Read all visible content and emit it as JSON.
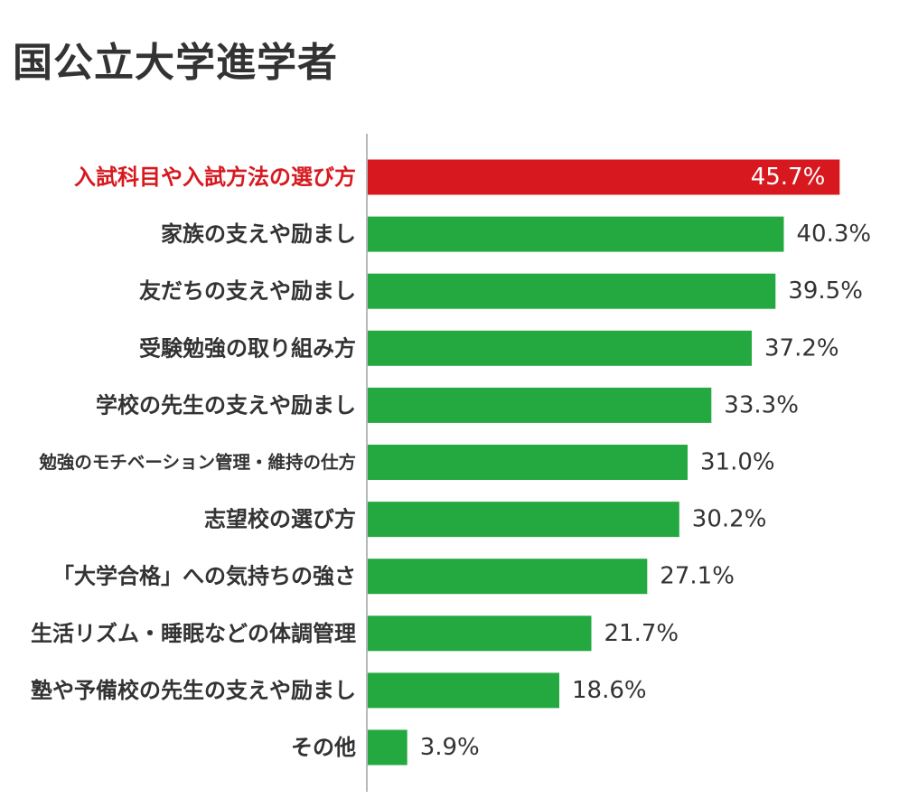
{
  "title": "国公立大学進学者",
  "colors": {
    "highlight": "#d7191f",
    "bar": "#23a93f",
    "label_default": "#333333",
    "label_highlight": "#d7191f",
    "value_default": "#333333",
    "value_inside": "#ffffff",
    "axis": "#b8b8b8"
  },
  "chart_data": {
    "type": "bar",
    "orientation": "horizontal",
    "categories": [
      "入試科目や入試方法の選び方",
      "家族の支えや励まし",
      "友だちの支えや励まし",
      "受験勉強の取り組み方",
      "学校の先生の支えや励まし",
      "勉強のモチベーション管理・維持の仕方",
      "志望校の選び方",
      "「大学合格」への気持ちの強さ",
      "生活リズム・睡眠などの体調管理",
      "塾や予備校の先生の支えや励まし",
      "その他"
    ],
    "values": [
      45.7,
      40.3,
      39.5,
      37.2,
      33.3,
      31.0,
      30.2,
      27.1,
      21.7,
      18.6,
      3.9
    ],
    "value_labels": [
      "45.7%",
      "40.3%",
      "39.5%",
      "37.2%",
      "33.3%",
      "31.0%",
      "30.2%",
      "27.1%",
      "21.7%",
      "18.6%",
      "3.9%"
    ],
    "highlight_index": 0,
    "unit": "%",
    "xlim": [
      0,
      51
    ],
    "grid": false,
    "legend": "none"
  }
}
